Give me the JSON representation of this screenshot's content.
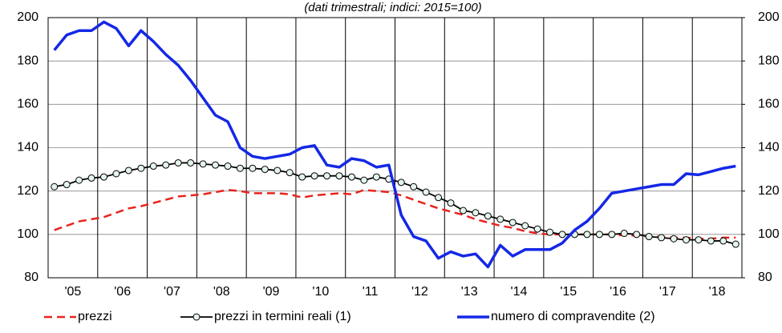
{
  "chart_data": {
    "type": "line",
    "title": "(dati trimestrali; indici: 2015=100)",
    "categories": [
      "'05",
      null,
      null,
      null,
      "'06",
      null,
      null,
      null,
      "'07",
      null,
      null,
      null,
      "'08",
      null,
      null,
      null,
      "'09",
      null,
      null,
      null,
      "'10",
      null,
      null,
      null,
      "'11",
      null,
      null,
      null,
      "'12",
      null,
      null,
      null,
      "'13",
      null,
      null,
      null,
      "'14",
      null,
      null,
      null,
      "'15",
      null,
      null,
      null,
      "'16",
      null,
      null,
      null,
      "'17",
      null,
      null,
      null,
      "'18",
      null,
      null,
      null
    ],
    "ylim": [
      80,
      200
    ],
    "yticks": [
      80,
      100,
      120,
      140,
      160,
      180,
      200
    ],
    "y2lim": [
      80,
      200
    ],
    "y2ticks": [
      80,
      100,
      120,
      140,
      160,
      180,
      200
    ],
    "grid": true,
    "legend": "bottom",
    "series": [
      {
        "name": "prezzi",
        "color": "#e8231f",
        "style": "dashed",
        "values": [
          102,
          104,
          106,
          107,
          108,
          110,
          112,
          113,
          114.5,
          116,
          117.5,
          118,
          118.5,
          119.5,
          120.5,
          120,
          119,
          119,
          119,
          118.5,
          117,
          118,
          118.5,
          119,
          118.5,
          120.5,
          120,
          119.5,
          118,
          116,
          114,
          112,
          110.5,
          109,
          107,
          105.5,
          104,
          103,
          101.5,
          100.5,
          100,
          100,
          100,
          100,
          100,
          100,
          99.5,
          99.5,
          99,
          99,
          98.5,
          98.5,
          98,
          98,
          98.5,
          98.5
        ]
      },
      {
        "name": "prezzi in termini reali (1)",
        "color": "#000000",
        "style": "markers",
        "values": [
          122,
          123,
          125,
          126,
          126.5,
          128,
          129.5,
          130.5,
          131.5,
          132,
          133,
          133,
          132.5,
          132,
          131.5,
          130.5,
          130.5,
          130,
          129.5,
          128.5,
          126.5,
          127,
          127,
          127,
          126.5,
          125,
          126.5,
          125.5,
          124,
          122,
          119.5,
          117,
          114.5,
          111,
          110,
          108.5,
          107,
          105.5,
          104,
          102.5,
          101,
          100,
          100,
          100,
          100,
          100,
          100.5,
          100,
          99,
          98.5,
          98,
          97.5,
          97.5,
          97,
          97,
          95.5
        ]
      },
      {
        "name": "numero di compravendite (2)",
        "color": "#1428e6",
        "style": "solid",
        "axis": "y2",
        "values": [
          185,
          192,
          194,
          194,
          198,
          195,
          187,
          194,
          189,
          183,
          178,
          171,
          163,
          155,
          152,
          140,
          136,
          135,
          136,
          137,
          140,
          141,
          132,
          131,
          135,
          134,
          131,
          132,
          109,
          99,
          97,
          89,
          92,
          90,
          91,
          85,
          95,
          90,
          93,
          93,
          93,
          96,
          102,
          106,
          112,
          119,
          120,
          121,
          122,
          123,
          123,
          128,
          127.5,
          129,
          130.5,
          131.5
        ]
      }
    ]
  }
}
